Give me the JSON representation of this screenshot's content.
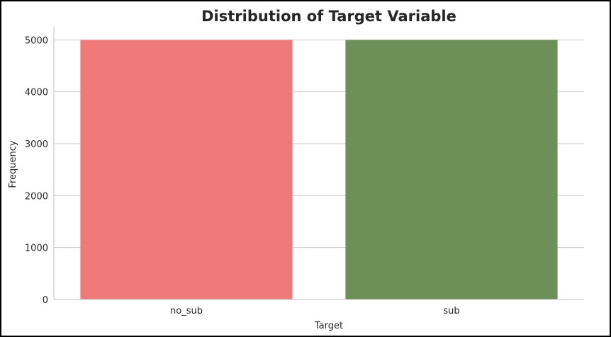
{
  "chart_data": {
    "type": "bar",
    "title": "Distribution of Target Variable",
    "xlabel": "Target",
    "ylabel": "Frequency",
    "categories": [
      "no_sub",
      "sub"
    ],
    "values": [
      5000,
      5000
    ],
    "colors": [
      "#ee7b7a",
      "#6d9058"
    ],
    "ylim": [
      0,
      5250
    ],
    "yticks": [
      0,
      1000,
      2000,
      3000,
      4000,
      5000
    ],
    "ytick_labels": [
      "0",
      "1000",
      "2000",
      "3000",
      "4000",
      "5000"
    ],
    "grid": "horizontal",
    "legend": "none"
  }
}
